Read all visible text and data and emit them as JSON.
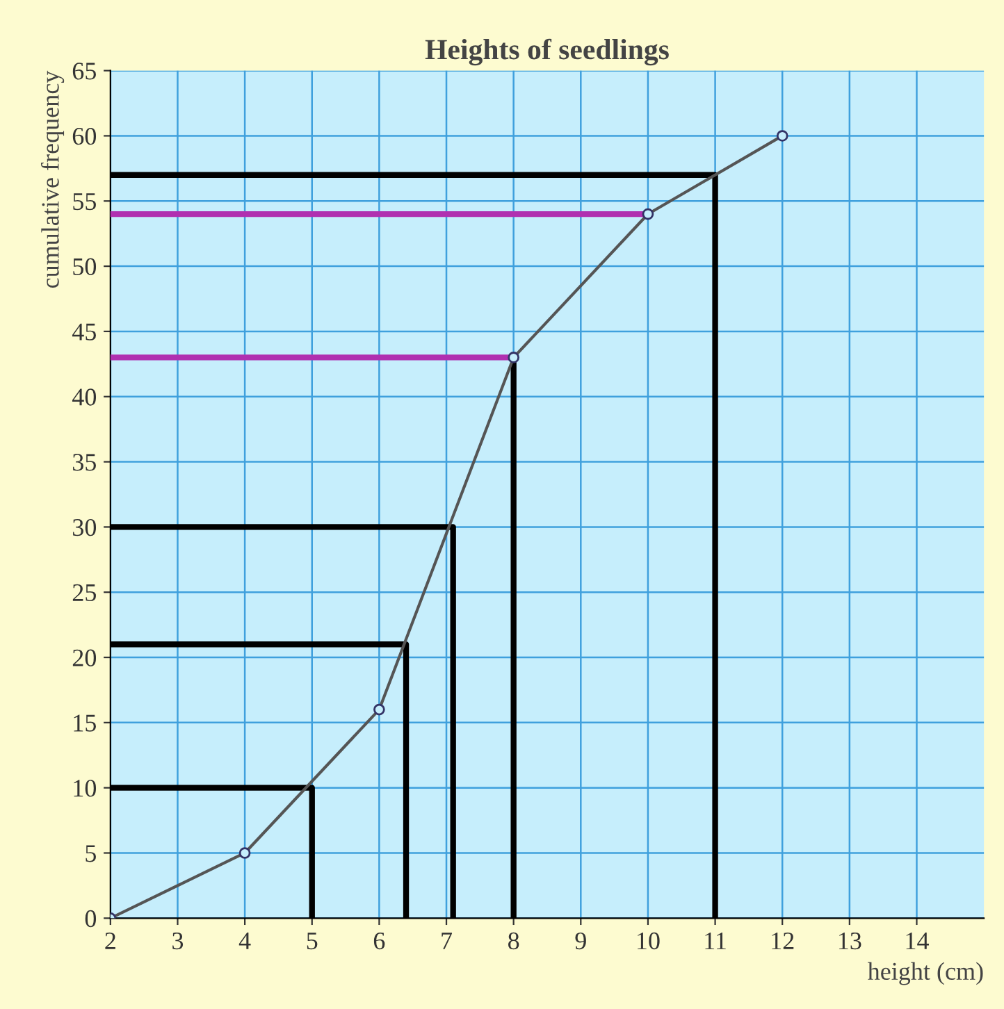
{
  "chart_data": {
    "type": "line",
    "title": "Heights of seedlings",
    "xlabel": "height (cm)",
    "ylabel": "cumulative frequency",
    "xlim": [
      2,
      15
    ],
    "ylim": [
      0,
      65
    ],
    "xticks": [
      2,
      3,
      4,
      5,
      6,
      7,
      8,
      9,
      10,
      11,
      12,
      13,
      14
    ],
    "yticks": [
      0,
      5,
      10,
      15,
      20,
      25,
      30,
      35,
      40,
      45,
      50,
      55,
      60,
      65
    ],
    "grid": true,
    "legend": false,
    "series": [
      {
        "color": "#555555",
        "marker": "circle",
        "x": [
          2,
          4,
          6,
          8,
          10,
          12
        ],
        "values": [
          0,
          5,
          16,
          43,
          54,
          60
        ]
      },
      {
        "color": "#000000",
        "marker": "none",
        "x": [
          2,
          5,
          5
        ],
        "values": [
          10,
          10,
          0
        ]
      },
      {
        "color": "#000000",
        "marker": "none",
        "x": [
          2,
          6.4,
          6.4
        ],
        "values": [
          21,
          21,
          0
        ]
      },
      {
        "color": "#000000",
        "marker": "none",
        "x": [
          2,
          7.1,
          7.1
        ],
        "values": [
          30,
          30,
          0
        ]
      },
      {
        "color": "#000000",
        "marker": "none",
        "x": [
          8,
          8
        ],
        "values": [
          43,
          0
        ]
      },
      {
        "color": "#000000",
        "marker": "none",
        "x": [
          2,
          11,
          11
        ],
        "values": [
          57,
          57,
          0
        ]
      },
      {
        "color": "#b030b0",
        "marker": "none",
        "x": [
          2,
          8
        ],
        "values": [
          43,
          43
        ]
      },
      {
        "color": "#b030b0",
        "marker": "none",
        "x": [
          2,
          10
        ],
        "values": [
          54,
          54
        ]
      }
    ]
  }
}
